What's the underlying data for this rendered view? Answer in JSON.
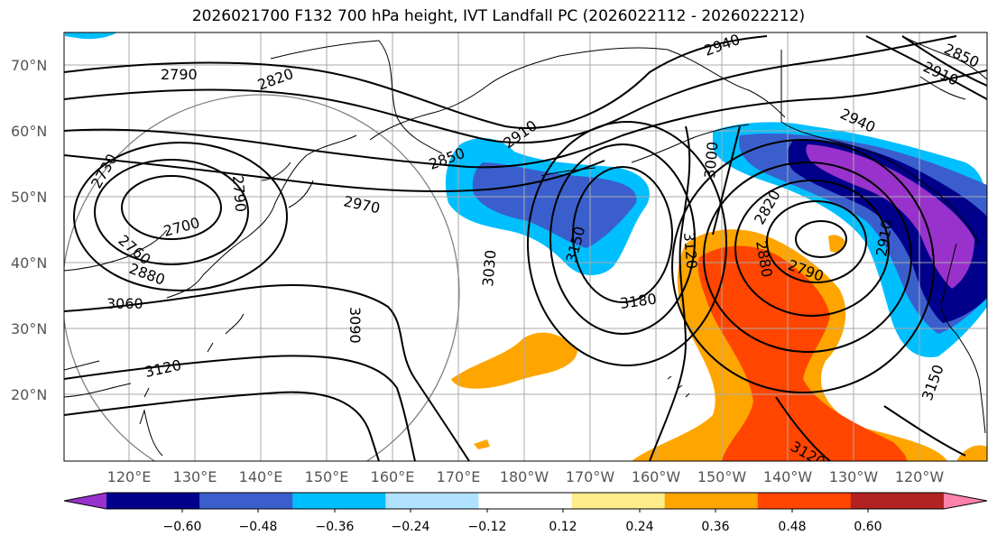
{
  "title": "2026021700 F132 700 hPa height, IVT Landfall PC (2026022112 - 2026022212)",
  "lat_labels": [
    "70°N",
    "60°N",
    "50°N",
    "40°N",
    "30°N",
    "20°N"
  ],
  "lon_labels": [
    "120°E",
    "130°E",
    "140°E",
    "150°E",
    "160°E",
    "170°E",
    "180°W",
    "170°W",
    "160°W",
    "150°W",
    "140°W",
    "130°W",
    "120°W"
  ],
  "contour_labels": [
    "2790",
    "2820",
    "2940",
    "2910",
    "2850",
    "2910",
    "2850",
    "2730",
    "2790",
    "2970",
    "3000",
    "2940",
    "2760",
    "2700",
    "3030",
    "3150",
    "2820",
    "2880",
    "3120",
    "2880",
    "2790",
    "2910",
    "3060",
    "3180",
    "3090",
    "3120",
    "3150",
    "3120"
  ],
  "colorbar": {
    "colors": [
      "#9932cc",
      "#00008b",
      "#3a5fcd",
      "#00bfff",
      "#b0e2ff",
      "#ffffff",
      "#ffec8b",
      "#ffa500",
      "#ff4500",
      "#b22222",
      "#ff82ab"
    ],
    "tick_labels": [
      "−0.60",
      "−0.48",
      "−0.36",
      "−0.24",
      "−0.12",
      "0.12",
      "0.24",
      "0.36",
      "0.48",
      "0.60"
    ]
  },
  "colors": {
    "land_outline": "#000000",
    "grid": "#aaaaaa",
    "circle": "#808080"
  }
}
